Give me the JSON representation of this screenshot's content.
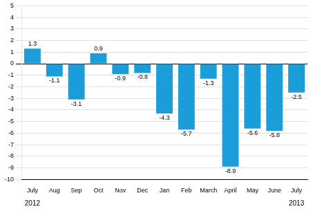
{
  "chart_data": {
    "type": "bar",
    "categories": [
      "July",
      "Aug",
      "Sep",
      "Oct",
      "Nov",
      "Dec",
      "Jan",
      "Feb",
      "March",
      "April",
      "May",
      "June",
      "July"
    ],
    "values": [
      1.3,
      -1.1,
      -3.1,
      0.9,
      -0.9,
      -0.8,
      -4.3,
      -5.7,
      -1.3,
      -8.9,
      -5.6,
      -5.8,
      -2.5
    ],
    "color": "#1b9dd9",
    "ylim": [
      -10,
      5
    ],
    "yticks": [
      -10,
      -9,
      -8,
      -7,
      -6,
      -5,
      -4,
      -3,
      -2,
      -1,
      0,
      1,
      2,
      3,
      4,
      5
    ],
    "grid": true,
    "data_labels": true,
    "annotations": [
      "2012",
      "2013"
    ]
  }
}
